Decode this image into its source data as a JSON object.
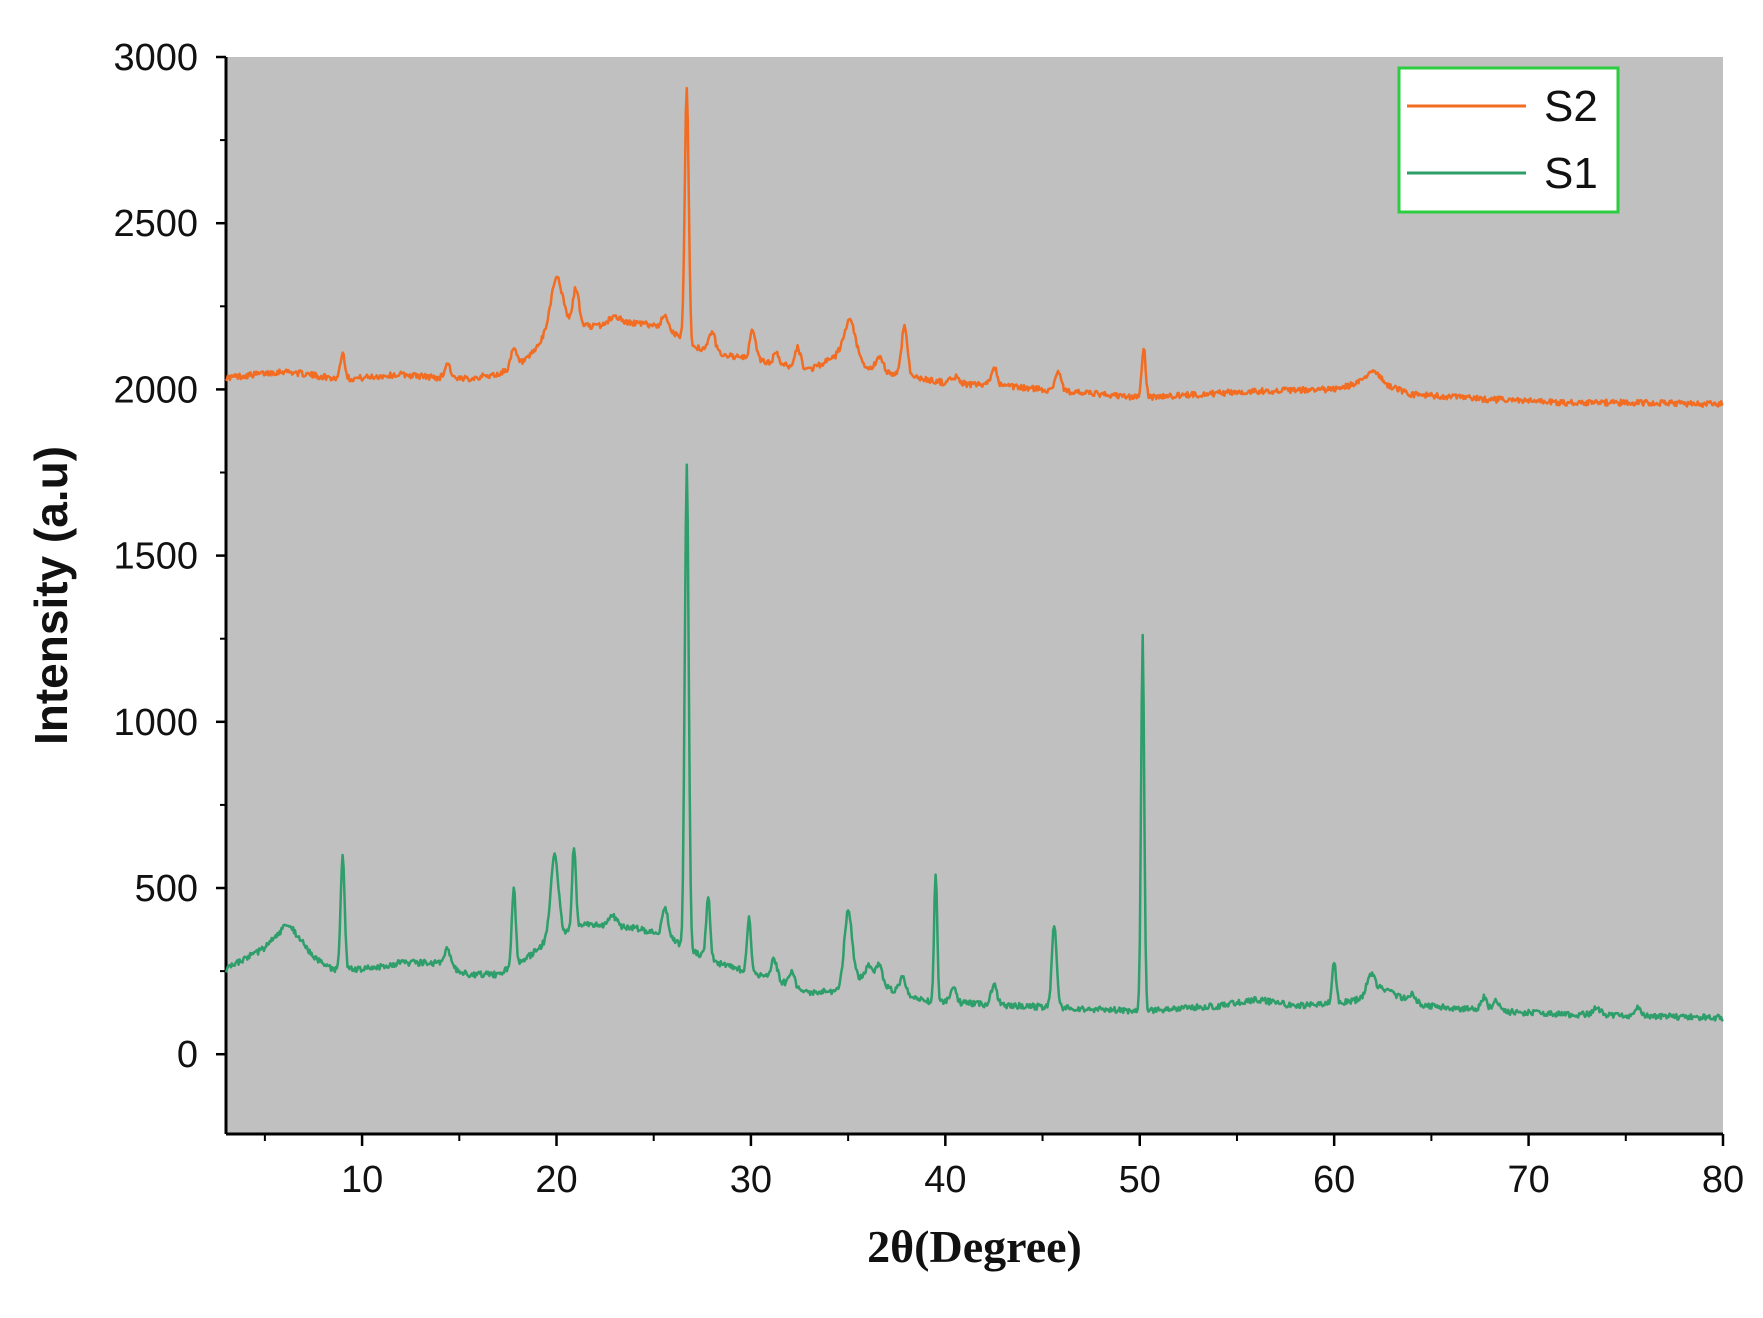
{
  "chart_data": {
    "type": "line",
    "title": "",
    "xlabel": "2θ(Degree)",
    "ylabel": "Intensity (a.u)",
    "xlim": [
      3,
      80
    ],
    "ylim": [
      -240,
      3000
    ],
    "xticks": [
      10,
      20,
      30,
      40,
      50,
      60,
      70,
      80
    ],
    "yticks": [
      0,
      500,
      1000,
      1500,
      2000,
      2500,
      3000
    ],
    "grid": false,
    "plot_background": "#c0c0c0",
    "legend": {
      "position": "top-right",
      "border_color": "#2ecc40"
    },
    "series": [
      {
        "name": "S2",
        "color": "#f26c22",
        "baseline": [
          [
            3,
            2035
          ],
          [
            6,
            2055
          ],
          [
            9,
            2030
          ],
          [
            12,
            2045
          ],
          [
            15,
            2030
          ],
          [
            17,
            2045
          ],
          [
            18.5,
            2090
          ],
          [
            20,
            2200
          ],
          [
            22,
            2190
          ],
          [
            24,
            2200
          ],
          [
            25.5,
            2190
          ],
          [
            27,
            2130
          ],
          [
            29,
            2100
          ],
          [
            31,
            2080
          ],
          [
            33,
            2060
          ],
          [
            34.5,
            2100
          ],
          [
            36,
            2060
          ],
          [
            38,
            2040
          ],
          [
            40,
            2020
          ],
          [
            44,
            2005
          ],
          [
            48,
            1985
          ],
          [
            50,
            1975
          ],
          [
            53,
            1985
          ],
          [
            56,
            1995
          ],
          [
            60,
            2000
          ],
          [
            62,
            2030
          ],
          [
            64,
            1985
          ],
          [
            68,
            1970
          ],
          [
            72,
            1960
          ],
          [
            76,
            1960
          ],
          [
            80,
            1955
          ]
        ],
        "peaks": [
          [
            9.0,
            80,
            0.12
          ],
          [
            14.4,
            45,
            0.15
          ],
          [
            17.8,
            50,
            0.15
          ],
          [
            20.0,
            140,
            0.3
          ],
          [
            21.0,
            110,
            0.15
          ],
          [
            23.0,
            25,
            0.3
          ],
          [
            25.6,
            40,
            0.15
          ],
          [
            26.7,
            770,
            0.1
          ],
          [
            28.0,
            60,
            0.15
          ],
          [
            30.1,
            90,
            0.15
          ],
          [
            31.3,
            30,
            0.15
          ],
          [
            32.4,
            60,
            0.15
          ],
          [
            35.1,
            120,
            0.3
          ],
          [
            36.6,
            40,
            0.2
          ],
          [
            37.9,
            150,
            0.15
          ],
          [
            40.5,
            20,
            0.2
          ],
          [
            42.5,
            60,
            0.15
          ],
          [
            45.8,
            60,
            0.15
          ],
          [
            50.2,
            150,
            0.1
          ],
          [
            62.0,
            30,
            0.3
          ]
        ]
      },
      {
        "name": "S1",
        "color": "#2e9e6a",
        "baseline": [
          [
            3,
            255
          ],
          [
            5,
            320
          ],
          [
            6.2,
            395
          ],
          [
            7.5,
            290
          ],
          [
            8.5,
            255
          ],
          [
            10,
            255
          ],
          [
            12,
            275
          ],
          [
            14,
            275
          ],
          [
            15.5,
            240
          ],
          [
            17,
            240
          ],
          [
            18.5,
            290
          ],
          [
            19.5,
            340
          ],
          [
            21.5,
            390
          ],
          [
            24,
            380
          ],
          [
            25.5,
            360
          ],
          [
            27,
            310
          ],
          [
            28.5,
            270
          ],
          [
            31,
            230
          ],
          [
            33,
            185
          ],
          [
            34.5,
            190
          ],
          [
            35.5,
            230
          ],
          [
            37,
            200
          ],
          [
            39,
            160
          ],
          [
            42,
            150
          ],
          [
            46,
            140
          ],
          [
            50,
            130
          ],
          [
            54,
            145
          ],
          [
            56,
            165
          ],
          [
            58,
            145
          ],
          [
            61,
            160
          ],
          [
            62.5,
            200
          ],
          [
            64,
            150
          ],
          [
            68,
            130
          ],
          [
            72,
            120
          ],
          [
            76,
            115
          ],
          [
            80,
            110
          ]
        ],
        "peaks": [
          [
            9.0,
            345,
            0.1
          ],
          [
            14.4,
            50,
            0.15
          ],
          [
            17.8,
            235,
            0.1
          ],
          [
            19.9,
            250,
            0.2
          ],
          [
            20.9,
            250,
            0.1
          ],
          [
            22.9,
            30,
            0.2
          ],
          [
            25.6,
            80,
            0.15
          ],
          [
            26.7,
            1450,
            0.1
          ],
          [
            27.8,
            190,
            0.1
          ],
          [
            29.9,
            160,
            0.1
          ],
          [
            31.2,
            60,
            0.15
          ],
          [
            32.1,
            40,
            0.15
          ],
          [
            35.0,
            220,
            0.2
          ],
          [
            36.1,
            50,
            0.2
          ],
          [
            36.6,
            60,
            0.15
          ],
          [
            37.8,
            50,
            0.15
          ],
          [
            39.5,
            390,
            0.08
          ],
          [
            40.4,
            50,
            0.15
          ],
          [
            42.5,
            60,
            0.15
          ],
          [
            45.6,
            250,
            0.12
          ],
          [
            50.15,
            1130,
            0.08
          ],
          [
            60.0,
            120,
            0.1
          ],
          [
            61.9,
            60,
            0.2
          ],
          [
            64.0,
            30,
            0.2
          ],
          [
            67.7,
            40,
            0.15
          ],
          [
            68.3,
            35,
            0.15
          ],
          [
            73.5,
            20,
            0.2
          ],
          [
            75.6,
            30,
            0.15
          ]
        ]
      }
    ]
  }
}
